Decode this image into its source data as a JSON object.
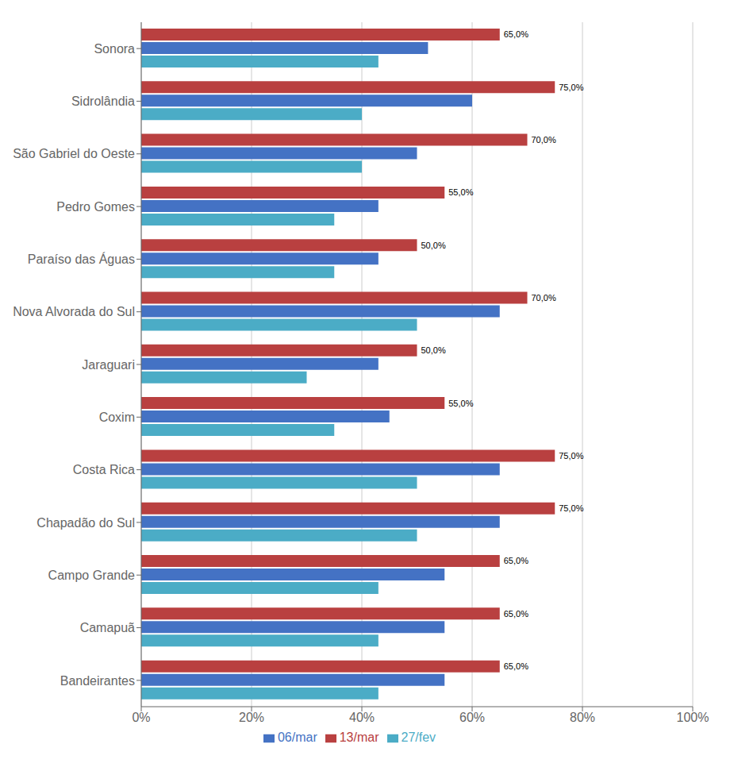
{
  "chart_data": {
    "type": "bar",
    "orientation": "horizontal",
    "categories": [
      "Bandeirantes",
      "Camapuã",
      "Campo Grande",
      "Chapadão do Sul",
      "Costa Rica",
      "Coxim",
      "Jaraguari",
      "Nova Alvorada do Sul",
      "Paraíso das Águas",
      "Pedro Gomes",
      "São Gabriel do Oeste",
      "Sidrolândia",
      "Sonora"
    ],
    "series": [
      {
        "name": "13/mar",
        "color": "#B94040",
        "values": [
          65,
          65,
          65,
          75,
          75,
          55,
          50,
          70,
          50,
          55,
          70,
          75,
          65
        ],
        "data_labels": true,
        "value_labels": [
          "65,0%",
          "65,0%",
          "65,0%",
          "75,0%",
          "75,0%",
          "55,0%",
          "50,0%",
          "70,0%",
          "50,0%",
          "55,0%",
          "70,0%",
          "75,0%",
          "65,0%"
        ]
      },
      {
        "name": "06/mar",
        "color": "#4472C4",
        "values": [
          55,
          55,
          55,
          65,
          65,
          45,
          43,
          65,
          43,
          43,
          50,
          60,
          52
        ]
      },
      {
        "name": "27/fev",
        "color": "#4BACC6",
        "values": [
          43,
          43,
          43,
          50,
          50,
          35,
          30,
          50,
          35,
          35,
          40,
          40,
          43
        ]
      }
    ],
    "xlim": [
      0,
      100
    ],
    "xticks": [
      {
        "value": 0,
        "label": "0%"
      },
      {
        "value": 20,
        "label": "20%"
      },
      {
        "value": 40,
        "label": "40%"
      },
      {
        "value": 60,
        "label": "60%"
      },
      {
        "value": 80,
        "label": "80%"
      },
      {
        "value": 100,
        "label": "100%"
      }
    ],
    "grid": true,
    "legend": "bottom"
  }
}
